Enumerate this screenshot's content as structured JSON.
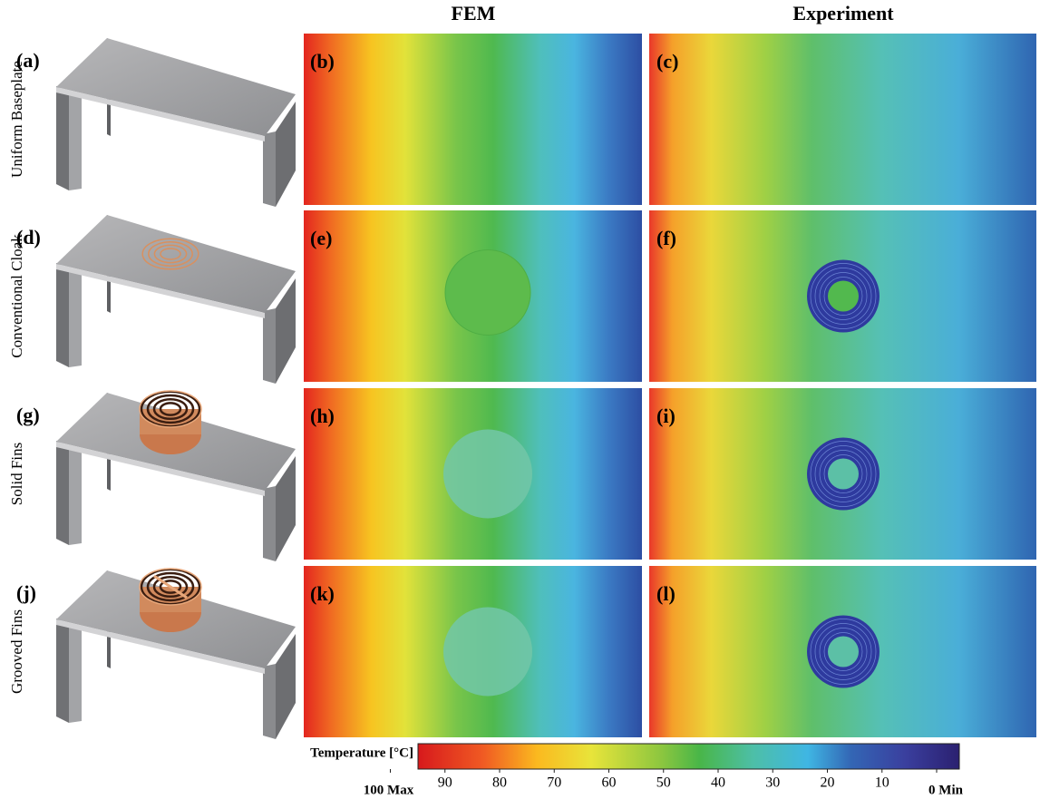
{
  "columns": [
    "FEM",
    "Experiment"
  ],
  "rows": [
    {
      "label": "Uniform Baseplate",
      "panels": [
        "(a)",
        "(b)",
        "(c)"
      ]
    },
    {
      "label": "Conventional Cloak",
      "panels": [
        "(d)",
        "(e)",
        "(f)"
      ]
    },
    {
      "label": "Solid Fins",
      "panels": [
        "(g)",
        "(h)",
        "(i)"
      ]
    },
    {
      "label": "Grooved Fins",
      "panels": [
        "(j)",
        "(k)",
        "(l)"
      ]
    }
  ],
  "colorbar": {
    "label": "Temperature [°C]",
    "ticks": [
      {
        "value": 100,
        "label": "100 Max"
      },
      90,
      80,
      70,
      60,
      50,
      40,
      30,
      20,
      10,
      {
        "value": 0,
        "label": "0 Min"
      }
    ]
  }
}
